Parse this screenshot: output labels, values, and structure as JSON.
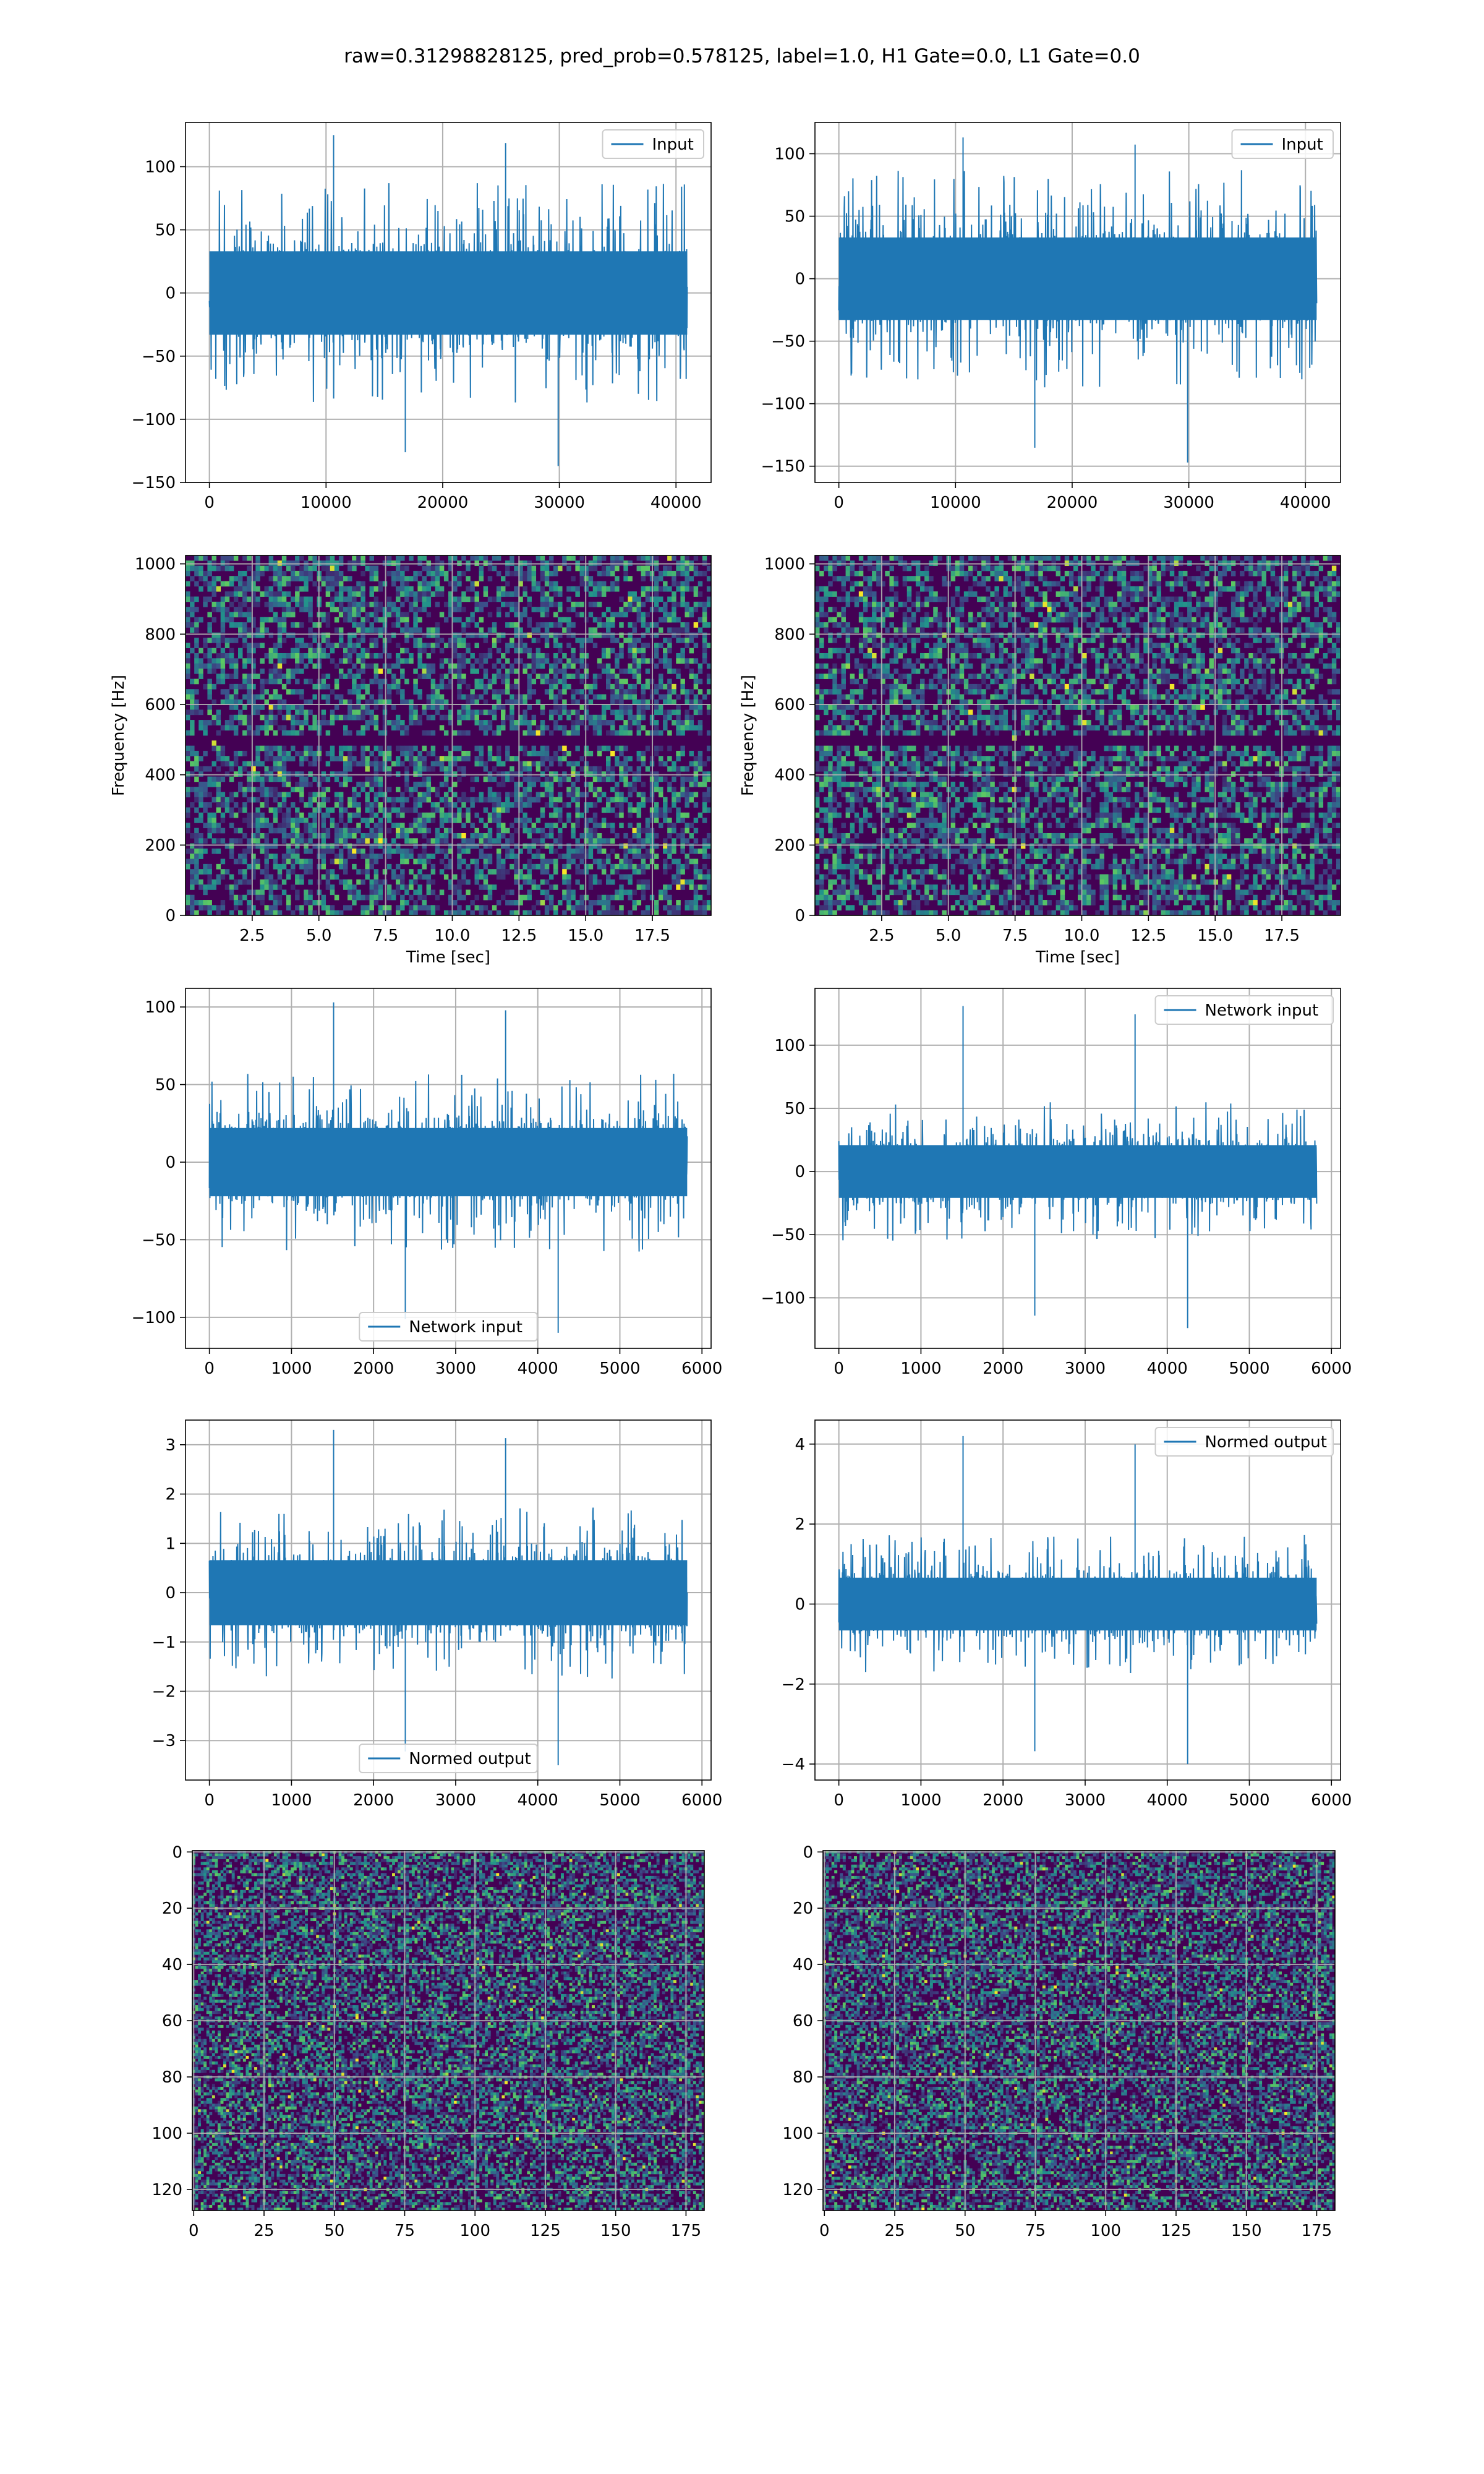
{
  "figure_title": "raw=0.31298828125, pred_prob=0.578125, label=1.0, H1 Gate=0.0, L1 Gate=0.0",
  "colors": {
    "line": "#1f77b4",
    "grid": "#b0b0b0",
    "viridis_dark": "#440154",
    "viridis_purple": "#3b0f70",
    "viridis_blue": "#31688e",
    "viridis_teal": "#21918c",
    "viridis_green": "#5ec962",
    "viridis_yellow": "#fde725"
  },
  "chart_data": [
    {
      "id": "raw_input_left",
      "type": "line",
      "series": [
        {
          "name": "Input",
          "n_samples": 40960,
          "typical_amplitude": 60,
          "peak_max": 125,
          "peak_min": -137
        }
      ],
      "legend": "top-right",
      "xlim": [
        -2048,
        43008
      ],
      "ylim": [
        -150,
        135
      ],
      "xticks": [
        0,
        10000,
        20000,
        30000,
        40000
      ],
      "xtick_labels": [
        "0",
        "10000",
        "20000",
        "30000",
        "40000"
      ],
      "yticks": [
        -150,
        -100,
        -50,
        0,
        50,
        100
      ],
      "ytick_labels": [
        "−150",
        "−100",
        "−50",
        "0",
        "50",
        "100"
      ],
      "xlabel": "",
      "ylabel": "",
      "grid": true
    },
    {
      "id": "raw_input_right",
      "type": "line",
      "series": [
        {
          "name": "Input",
          "n_samples": 40960,
          "typical_amplitude": 60,
          "peak_max": 113,
          "peak_min": -147
        }
      ],
      "legend": "top-right",
      "xlim": [
        -2048,
        43008
      ],
      "ylim": [
        -163,
        125
      ],
      "xticks": [
        0,
        10000,
        20000,
        30000,
        40000
      ],
      "xtick_labels": [
        "0",
        "10000",
        "20000",
        "30000",
        "40000"
      ],
      "yticks": [
        -150,
        -100,
        -50,
        0,
        50,
        100
      ],
      "ytick_labels": [
        "−150",
        "−100",
        "−50",
        "0",
        "50",
        "100"
      ],
      "xlabel": "",
      "ylabel": "",
      "grid": true
    },
    {
      "id": "spectrogram_left",
      "type": "heatmap",
      "colormap": "viridis",
      "dark_band_hz": 500,
      "xlim": [
        0,
        19.7
      ],
      "ylim": [
        0,
        1024
      ],
      "xticks": [
        2.5,
        5.0,
        7.5,
        10.0,
        12.5,
        15.0,
        17.5
      ],
      "xtick_labels": [
        "2.5",
        "5.0",
        "7.5",
        "10.0",
        "12.5",
        "15.0",
        "17.5"
      ],
      "yticks": [
        0,
        200,
        400,
        600,
        800,
        1000
      ],
      "ytick_labels": [
        "0",
        "200",
        "400",
        "600",
        "800",
        "1000"
      ],
      "xlabel": "Time [sec]",
      "ylabel": "Frequency [Hz]",
      "grid": true
    },
    {
      "id": "spectrogram_right",
      "type": "heatmap",
      "colormap": "viridis",
      "dark_band_hz": 500,
      "xlim": [
        0,
        19.7
      ],
      "ylim": [
        0,
        1024
      ],
      "xticks": [
        2.5,
        5.0,
        7.5,
        10.0,
        12.5,
        15.0,
        17.5
      ],
      "xtick_labels": [
        "2.5",
        "5.0",
        "7.5",
        "10.0",
        "12.5",
        "15.0",
        "17.5"
      ],
      "yticks": [
        0,
        200,
        400,
        600,
        800,
        1000
      ],
      "ytick_labels": [
        "0",
        "200",
        "400",
        "600",
        "800",
        "1000"
      ],
      "xlabel": "Time [sec]",
      "ylabel": "Frequency [Hz]",
      "grid": true
    },
    {
      "id": "network_input_left",
      "type": "line",
      "series": [
        {
          "name": "Network input",
          "n_samples": 5820,
          "typical_amplitude": 40,
          "peak_max": 103,
          "peak_min": -110
        }
      ],
      "legend": "bottom-center",
      "xlim": [
        -291,
        6111
      ],
      "ylim": [
        -120,
        112
      ],
      "xticks": [
        0,
        1000,
        2000,
        3000,
        4000,
        5000,
        6000
      ],
      "xtick_labels": [
        "0",
        "1000",
        "2000",
        "3000",
        "4000",
        "5000",
        "6000"
      ],
      "yticks": [
        -100,
        -50,
        0,
        50,
        100
      ],
      "ytick_labels": [
        "−100",
        "−50",
        "0",
        "50",
        "100"
      ],
      "xlabel": "",
      "ylabel": "",
      "grid": true
    },
    {
      "id": "network_input_right",
      "type": "line",
      "series": [
        {
          "name": "Network input",
          "n_samples": 5820,
          "typical_amplitude": 38,
          "peak_max": 131,
          "peak_min": -124
        }
      ],
      "legend": "top-right",
      "xlim": [
        -291,
        6111
      ],
      "ylim": [
        -140,
        145
      ],
      "xticks": [
        0,
        1000,
        2000,
        3000,
        4000,
        5000,
        6000
      ],
      "xtick_labels": [
        "0",
        "1000",
        "2000",
        "3000",
        "4000",
        "5000",
        "6000"
      ],
      "yticks": [
        -100,
        -50,
        0,
        50,
        100
      ],
      "ytick_labels": [
        "−100",
        "−50",
        "0",
        "50",
        "100"
      ],
      "xlabel": "",
      "ylabel": "",
      "grid": true
    },
    {
      "id": "normed_output_left",
      "type": "line",
      "series": [
        {
          "name": "Normed output",
          "n_samples": 5820,
          "typical_amplitude": 1.2,
          "peak_max": 3.3,
          "peak_min": -3.5
        }
      ],
      "legend": "bottom-center",
      "xlim": [
        -291,
        6111
      ],
      "ylim": [
        -3.8,
        3.5
      ],
      "xticks": [
        0,
        1000,
        2000,
        3000,
        4000,
        5000,
        6000
      ],
      "xtick_labels": [
        "0",
        "1000",
        "2000",
        "3000",
        "4000",
        "5000",
        "6000"
      ],
      "yticks": [
        -3,
        -2,
        -1,
        0,
        1,
        2,
        3
      ],
      "ytick_labels": [
        "−3",
        "−2",
        "−1",
        "0",
        "1",
        "2",
        "3"
      ],
      "xlabel": "",
      "ylabel": "",
      "grid": true
    },
    {
      "id": "normed_output_right",
      "type": "line",
      "series": [
        {
          "name": "Normed output",
          "n_samples": 5820,
          "typical_amplitude": 1.2,
          "peak_max": 4.2,
          "peak_min": -4.0
        }
      ],
      "legend": "top-right",
      "xlim": [
        -291,
        6111
      ],
      "ylim": [
        -4.4,
        4.6
      ],
      "xticks": [
        0,
        1000,
        2000,
        3000,
        4000,
        5000,
        6000
      ],
      "xtick_labels": [
        "0",
        "1000",
        "2000",
        "3000",
        "4000",
        "5000",
        "6000"
      ],
      "yticks": [
        -4,
        -2,
        0,
        2,
        4
      ],
      "ytick_labels": [
        "−4",
        "−2",
        "0",
        "2",
        "4"
      ],
      "xlabel": "",
      "ylabel": "",
      "grid": true
    },
    {
      "id": "image_left",
      "type": "heatmap",
      "colormap": "viridis",
      "rows": 128,
      "cols": 182,
      "xlim": [
        -0.5,
        181.5
      ],
      "ylim": [
        127.5,
        -0.5
      ],
      "xticks": [
        0,
        25,
        50,
        75,
        100,
        125,
        150,
        175
      ],
      "xtick_labels": [
        "0",
        "25",
        "50",
        "75",
        "100",
        "125",
        "150",
        "175"
      ],
      "yticks": [
        0,
        20,
        40,
        60,
        80,
        100,
        120
      ],
      "ytick_labels": [
        "0",
        "20",
        "40",
        "60",
        "80",
        "100",
        "120"
      ],
      "xlabel": "",
      "ylabel": "",
      "grid": true
    },
    {
      "id": "image_right",
      "type": "heatmap",
      "colormap": "viridis",
      "rows": 128,
      "cols": 182,
      "xlim": [
        -0.5,
        181.5
      ],
      "ylim": [
        127.5,
        -0.5
      ],
      "xticks": [
        0,
        25,
        50,
        75,
        100,
        125,
        150,
        175
      ],
      "xtick_labels": [
        "0",
        "25",
        "50",
        "75",
        "100",
        "125",
        "150",
        "175"
      ],
      "yticks": [
        0,
        20,
        40,
        60,
        80,
        100,
        120
      ],
      "ytick_labels": [
        "0",
        "20",
        "40",
        "60",
        "80",
        "100",
        "120"
      ],
      "xlabel": "",
      "ylabel": "",
      "grid": true
    }
  ]
}
